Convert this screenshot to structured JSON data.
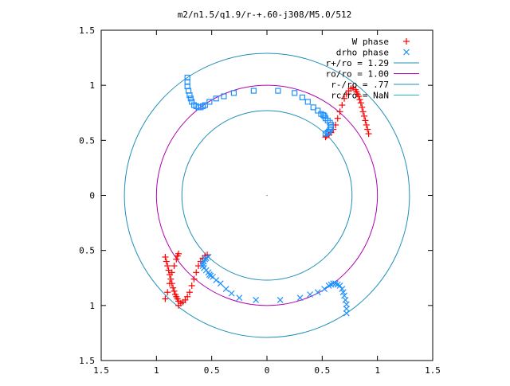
{
  "chart_data": {
    "type": "scatter",
    "title": "m2/n1.5/q1.9/r-+.60-j308/M5.0/512",
    "xlabel": "",
    "ylabel": "",
    "xlim": [
      -1.5,
      1.5
    ],
    "ylim": [
      -1.5,
      1.5
    ],
    "grid": false,
    "legend_position": "top-right",
    "x_ticks": [
      -1.5,
      -1,
      -0.5,
      0,
      0.5,
      1,
      1.5
    ],
    "x_tick_labels": [
      "1.5",
      "1",
      "0.5",
      "0",
      "0.5",
      "1",
      "1.5"
    ],
    "y_ticks": [
      1.5,
      1,
      0.5,
      0,
      -0.5,
      -1,
      -1.5
    ],
    "y_tick_labels": [
      "1.5",
      "1",
      "0.5",
      "0",
      "0.5",
      "1",
      "1.5"
    ],
    "circles": [
      {
        "label": "r+/ro = 1.29",
        "radius": 1.29,
        "color": "#1f8fb8"
      },
      {
        "label": "ro/ro = 1.00",
        "radius": 1.0,
        "color": "#b000b0"
      },
      {
        "label": "r-/ro = .77",
        "radius": 0.77,
        "color": "#1f8fb8"
      },
      {
        "label": "rc/ro = NaN",
        "radius": null,
        "color": "#20c0c0"
      }
    ],
    "series": [
      {
        "name": "W phase",
        "marker": "+",
        "color": "#ff0000",
        "x": [
          0.92,
          0.91,
          0.9,
          0.89,
          0.88,
          0.87,
          0.86,
          0.85,
          0.84,
          0.83,
          0.82,
          0.81,
          0.8,
          0.78,
          0.76,
          0.74,
          0.72,
          0.7,
          0.68,
          0.66,
          0.64,
          0.62,
          0.6,
          0.58,
          0.56,
          0.54,
          0.53,
          -0.92,
          -0.91,
          -0.9,
          -0.89,
          -0.88,
          -0.87,
          -0.86,
          -0.85,
          -0.84,
          -0.83,
          -0.82,
          -0.81,
          -0.8,
          -0.78,
          -0.76,
          -0.74,
          -0.72,
          -0.7,
          -0.68,
          -0.66,
          -0.64,
          -0.62,
          -0.6,
          -0.58,
          -0.56,
          -0.54,
          -0.8,
          -0.81,
          -0.82,
          -0.84,
          -0.86,
          -0.88,
          -0.9,
          -0.92,
          -0.8
        ],
        "y": [
          0.56,
          0.6,
          0.64,
          0.68,
          0.72,
          0.76,
          0.8,
          0.84,
          0.87,
          0.9,
          0.92,
          0.94,
          0.96,
          0.98,
          0.97,
          0.95,
          0.92,
          0.88,
          0.82,
          0.76,
          0.7,
          0.64,
          0.6,
          0.57,
          0.55,
          0.54,
          0.53,
          -0.56,
          -0.6,
          -0.64,
          -0.68,
          -0.72,
          -0.76,
          -0.8,
          -0.84,
          -0.87,
          -0.9,
          -0.92,
          -0.94,
          -0.96,
          -0.98,
          -0.97,
          -0.95,
          -0.92,
          -0.88,
          -0.82,
          -0.76,
          -0.7,
          -0.64,
          -0.6,
          -0.57,
          -0.55,
          -0.54,
          -0.53,
          -0.55,
          -0.58,
          -0.64,
          -0.7,
          -0.8,
          -0.88,
          -0.94,
          -1.0
        ]
      },
      {
        "name": "drho phase",
        "marker": "x / square",
        "color": "#1e90ff",
        "x": [
          -0.72,
          -0.72,
          -0.72,
          -0.71,
          -0.7,
          -0.69,
          -0.68,
          -0.66,
          -0.64,
          -0.62,
          -0.6,
          -0.58,
          -0.56,
          -0.52,
          -0.46,
          -0.39,
          -0.3,
          -0.12,
          0.1,
          0.25,
          0.32,
          0.37,
          0.42,
          0.46,
          0.49,
          0.51,
          0.52,
          0.53,
          0.55,
          0.57,
          0.58,
          0.58,
          0.57,
          0.56,
          0.55,
          0.53,
          0.72,
          0.72,
          0.72,
          0.71,
          0.7,
          0.69,
          0.68,
          0.66,
          0.64,
          0.62,
          0.6,
          0.58,
          0.56,
          0.52,
          0.46,
          0.39,
          0.3,
          0.12,
          -0.1,
          -0.25,
          -0.32,
          -0.37,
          -0.42,
          -0.46,
          -0.49,
          -0.51,
          -0.52,
          -0.53,
          -0.55,
          -0.57,
          -0.58,
          -0.58,
          -0.57,
          -0.56,
          -0.55,
          -0.53
        ],
        "y": [
          1.07,
          1.03,
          0.99,
          0.95,
          0.91,
          0.88,
          0.85,
          0.82,
          0.81,
          0.8,
          0.8,
          0.81,
          0.82,
          0.85,
          0.88,
          0.9,
          0.93,
          0.95,
          0.95,
          0.93,
          0.89,
          0.85,
          0.8,
          0.77,
          0.74,
          0.73,
          0.72,
          0.7,
          0.68,
          0.66,
          0.64,
          0.62,
          0.6,
          0.58,
          0.57,
          0.56,
          -1.07,
          -1.03,
          -0.99,
          -0.95,
          -0.91,
          -0.88,
          -0.85,
          -0.82,
          -0.81,
          -0.8,
          -0.8,
          -0.81,
          -0.82,
          -0.85,
          -0.88,
          -0.9,
          -0.93,
          -0.95,
          -0.95,
          -0.93,
          -0.89,
          -0.85,
          -0.8,
          -0.77,
          -0.74,
          -0.73,
          -0.72,
          -0.7,
          -0.68,
          -0.66,
          -0.64,
          -0.62,
          -0.6,
          -0.58,
          -0.57,
          -0.56
        ]
      }
    ]
  }
}
